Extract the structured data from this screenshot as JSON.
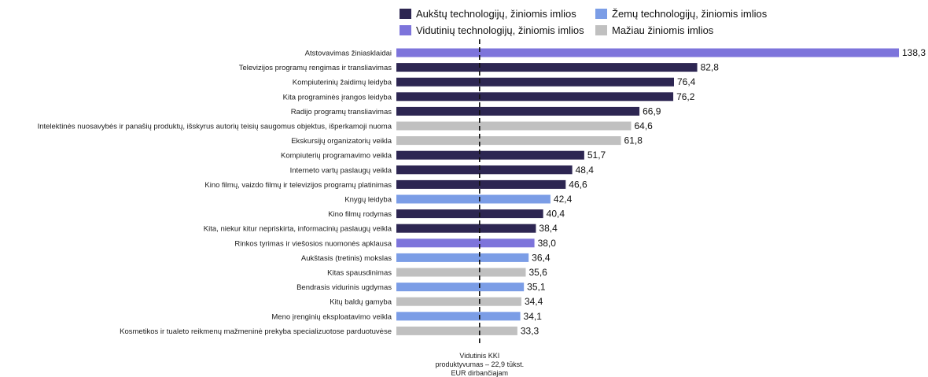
{
  "legend": [
    {
      "label": "Aukštų technologijų, žiniomis imlios",
      "color": "#2d2652"
    },
    {
      "label": "Žemų technologijų, žiniomis imlios",
      "color": "#7b9de6"
    },
    {
      "label": "Vidutinių technologijų, žiniomis imlios",
      "color": "#7d74db"
    },
    {
      "label": "Mažiau žiniomis imlios",
      "color": "#c0c0c0"
    }
  ],
  "chart_data": {
    "type": "bar",
    "orientation": "horizontal",
    "categories": [
      "Atstovavimas žiniasklaidai",
      "Televizijos programų rengimas ir transliavimas",
      "Kompiuterinių žaidimų leidyba",
      "Kita programinės įrangos leidyba",
      "Radijo programų transliavimas",
      "Intelektinės nuosavybės ir panašių produktų, išskyrus autorių teisių saugomus objektus, išperkamoji nuoma",
      "Ekskursijų organizatorių veikla",
      "Kompiuterių programavimo veikla",
      "Interneto vartų paslaugų veikla",
      "Kino filmų, vaizdo filmų ir televizijos programų platinimas",
      "Knygų leidyba",
      "Kino filmų rodymas",
      "Kita, niekur kitur nepriskirta, informacinių paslaugų veikla",
      "Rinkos tyrimas ir viešosios nuomonės apklausa",
      "Aukštasis (tretinis) mokslas",
      "Kitas spausdinimas",
      "Bendrasis vidurinis ugdymas",
      "Kitų baldų gamyba",
      "Meno įrenginių eksploatavimo veikla",
      "Kosmetikos ir tualeto reikmenų mažmeninė prekyba specializuotose parduotuvėse"
    ],
    "values": [
      138.3,
      82.8,
      76.4,
      76.2,
      66.9,
      64.6,
      61.8,
      51.7,
      48.4,
      46.6,
      42.4,
      40.4,
      38.4,
      38.0,
      36.4,
      35.6,
      35.1,
      34.4,
      34.1,
      33.3
    ],
    "value_labels": [
      "138,3",
      "82,8",
      "76,4",
      "76,2",
      "66,9",
      "64,6",
      "61,8",
      "51,7",
      "48,4",
      "46,6",
      "42,4",
      "40,4",
      "38,4",
      "38,0",
      "36,4",
      "35,6",
      "35,1",
      "34,4",
      "34,1",
      "33,3"
    ],
    "groups": [
      "Vidutinių technologijų, žiniomis imlios",
      "Aukštų technologijų, žiniomis imlios",
      "Aukštų technologijų, žiniomis imlios",
      "Aukštų technologijų, žiniomis imlios",
      "Aukštų technologijų, žiniomis imlios",
      "Mažiau žiniomis imlios",
      "Mažiau žiniomis imlios",
      "Aukštų technologijų, žiniomis imlios",
      "Aukštų technologijų, žiniomis imlios",
      "Aukštų technologijų, žiniomis imlios",
      "Žemų technologijų, žiniomis imlios",
      "Aukštų technologijų, žiniomis imlios",
      "Aukštų technologijų, žiniomis imlios",
      "Vidutinių technologijų, žiniomis imlios",
      "Žemų technologijų, žiniomis imlios",
      "Mažiau žiniomis imlios",
      "Žemų technologijų, žiniomis imlios",
      "Mažiau žiniomis imlios",
      "Žemų technologijų, žiniomis imlios",
      "Mažiau žiniomis imlios"
    ],
    "xlim": [
      0,
      138.3
    ],
    "reference_line": {
      "value": 22.9,
      "style": "dashed",
      "label_lines": [
        "Vidutinis KKI",
        "produktyvumas – 22,9 tūkst.",
        "EUR dirbančiajam"
      ]
    },
    "legend_position": "top"
  }
}
